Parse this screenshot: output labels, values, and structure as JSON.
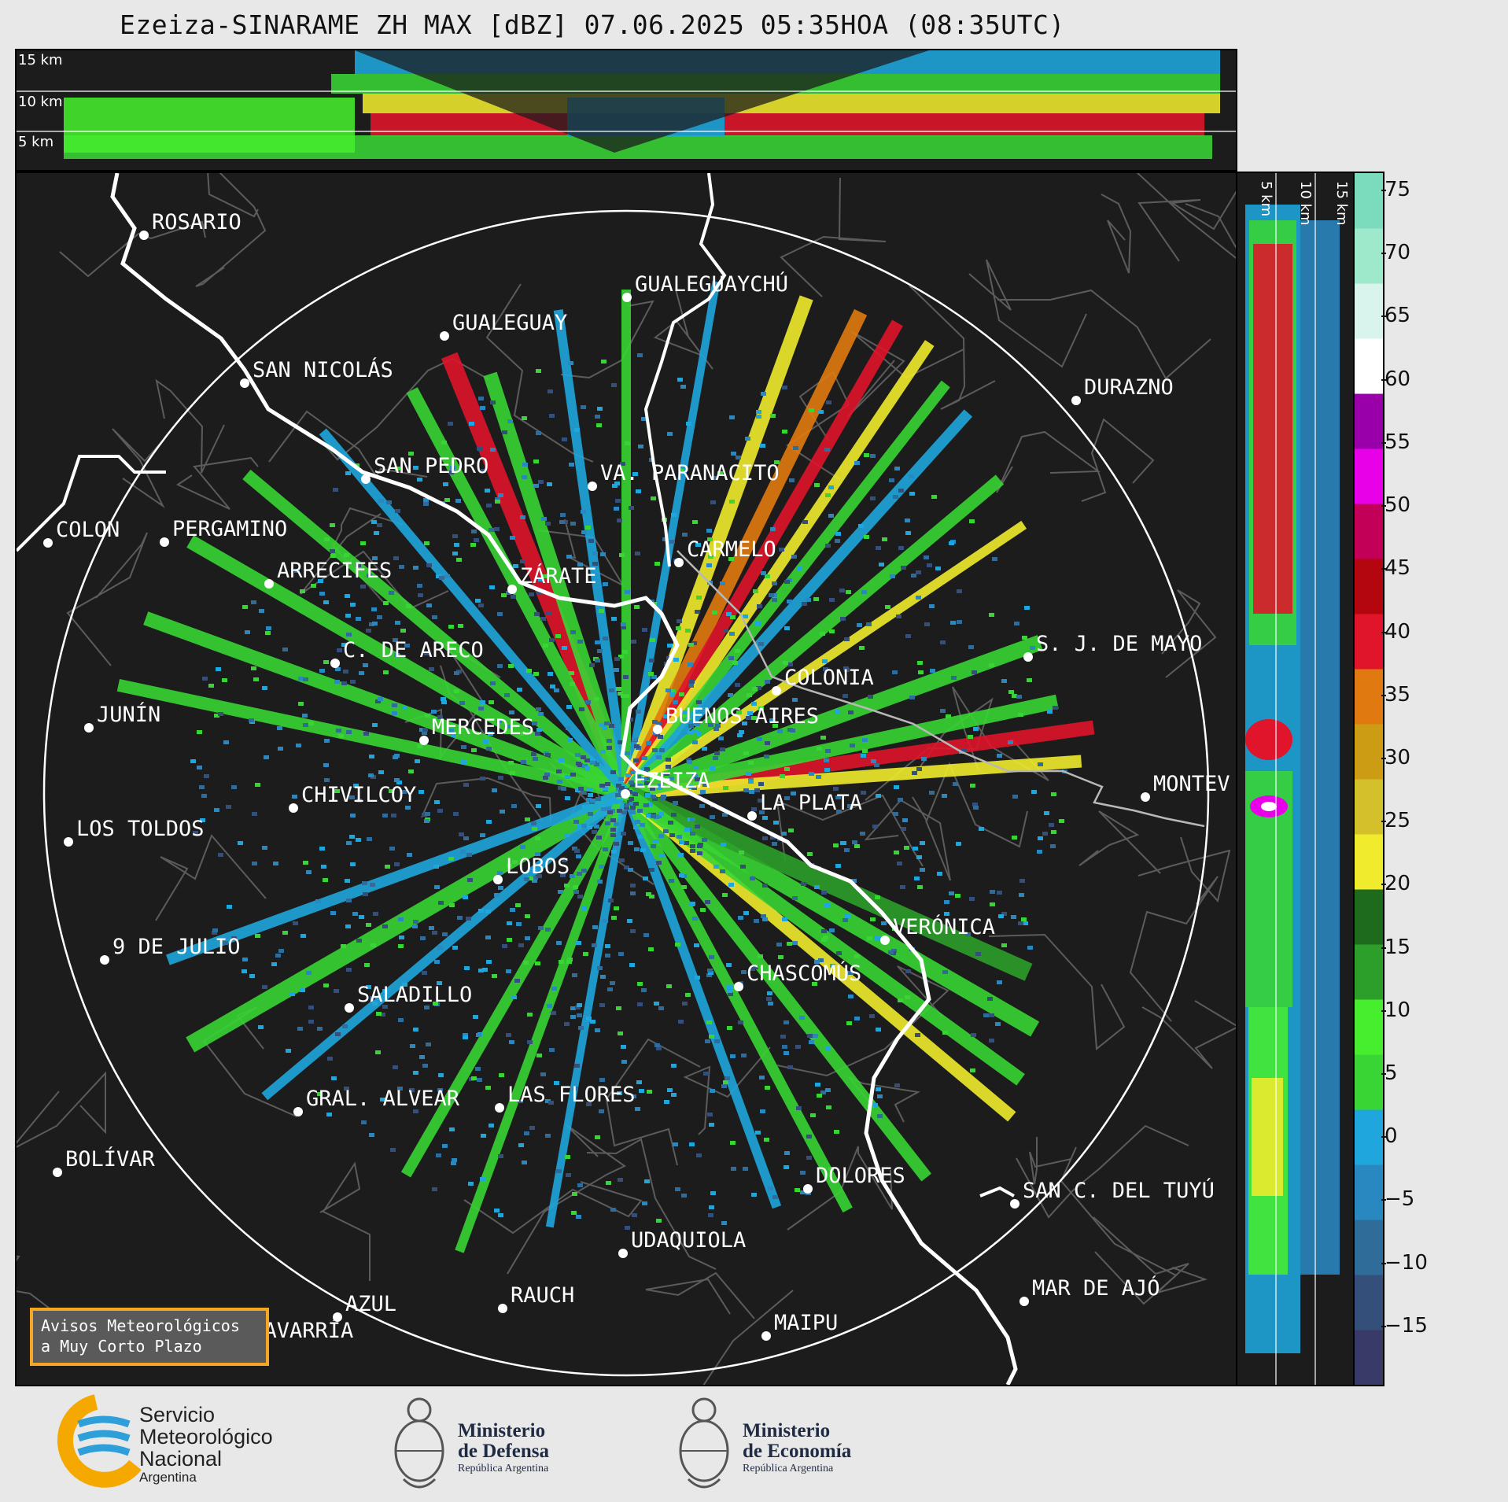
{
  "title": "Ezeiza-SINARAME ZH MAX [dBZ] 07.06.2025 05:35HOA (08:35UTC)",
  "top_section": {
    "height_labels": [
      "15 km",
      "10 km",
      "5 km"
    ]
  },
  "side_section": {
    "height_labels": [
      "5 km",
      "10 km",
      "15 km"
    ]
  },
  "colorbar": {
    "unit": "dBZ",
    "ticks": [
      "75",
      "70",
      "65",
      "60",
      "55",
      "50",
      "45",
      "40",
      "35",
      "30",
      "25",
      "20",
      "15",
      "10",
      "5",
      "0",
      "−5",
      "−10",
      "−15"
    ],
    "range": [
      -19.5,
      76.5
    ],
    "colors": [
      "#3a3a68",
      "#34507a",
      "#2f6c9a",
      "#2a88c0",
      "#1ea6dd",
      "#39d534",
      "#46ee2e",
      "#2c9e2a",
      "#1e6b1e",
      "#f0eb2c",
      "#d4c02a",
      "#cc9c14",
      "#e07a10",
      "#e0142a",
      "#b4060e",
      "#c20058",
      "#e800e8",
      "#9a00aa",
      "#ffffff",
      "#d8f4ec",
      "#9ee8cc",
      "#7adcbc"
    ]
  },
  "cities": [
    {
      "name": "ROSARIO"
    },
    {
      "name": "GUALEGUAYCHÚ"
    },
    {
      "name": "GUALEGUAY"
    },
    {
      "name": "SAN NICOLÁS"
    },
    {
      "name": "DURAZNO"
    },
    {
      "name": "SAN PEDRO"
    },
    {
      "name": "VA. PARANACITO"
    },
    {
      "name": "COLON"
    },
    {
      "name": "PERGAMINO"
    },
    {
      "name": "CARMELO"
    },
    {
      "name": "ARRECIFES"
    },
    {
      "name": "ZÁRATE"
    },
    {
      "name": "C. DE ARECO"
    },
    {
      "name": "S. J. DE MAYO"
    },
    {
      "name": "COLONIA"
    },
    {
      "name": "JUNÍN"
    },
    {
      "name": "BUENOS AIRES"
    },
    {
      "name": "MERCEDES"
    },
    {
      "name": "EZEIZA"
    },
    {
      "name": "MONTEV"
    },
    {
      "name": "CHIVILCOY"
    },
    {
      "name": "LA PLATA"
    },
    {
      "name": "LOS TOLDOS"
    },
    {
      "name": "LOBOS"
    },
    {
      "name": "VERÓNICA"
    },
    {
      "name": "9 DE JULIO"
    },
    {
      "name": "CHASCOMÚS"
    },
    {
      "name": "SALADILLO"
    },
    {
      "name": "GRAL. ALVEAR"
    },
    {
      "name": "LAS FLORES"
    },
    {
      "name": "BOLÍVAR"
    },
    {
      "name": "DOLORES"
    },
    {
      "name": "SAN C. DEL TUYÚ"
    },
    {
      "name": "UDAQUIOLA"
    },
    {
      "name": "MAR DE AJÓ"
    },
    {
      "name": "RAUCH"
    },
    {
      "name": "AZUL"
    },
    {
      "name": "OLAVARRÍA"
    },
    {
      "name": "MAIPU"
    }
  ],
  "avisos": {
    "line1": "Avisos Meteorológicos",
    "line2": "a Muy Corto Plazo"
  },
  "logos": {
    "smn": {
      "line1": "Servicio",
      "line2": "Meteorológico",
      "line3": "Nacional",
      "line4": "Argentina"
    },
    "defensa": {
      "line1": "Ministerio",
      "line2": "de Defensa",
      "line3": "República Argentina"
    },
    "economia": {
      "line1": "Ministerio",
      "line2": "de Economía",
      "line3": "República Argentina"
    }
  }
}
